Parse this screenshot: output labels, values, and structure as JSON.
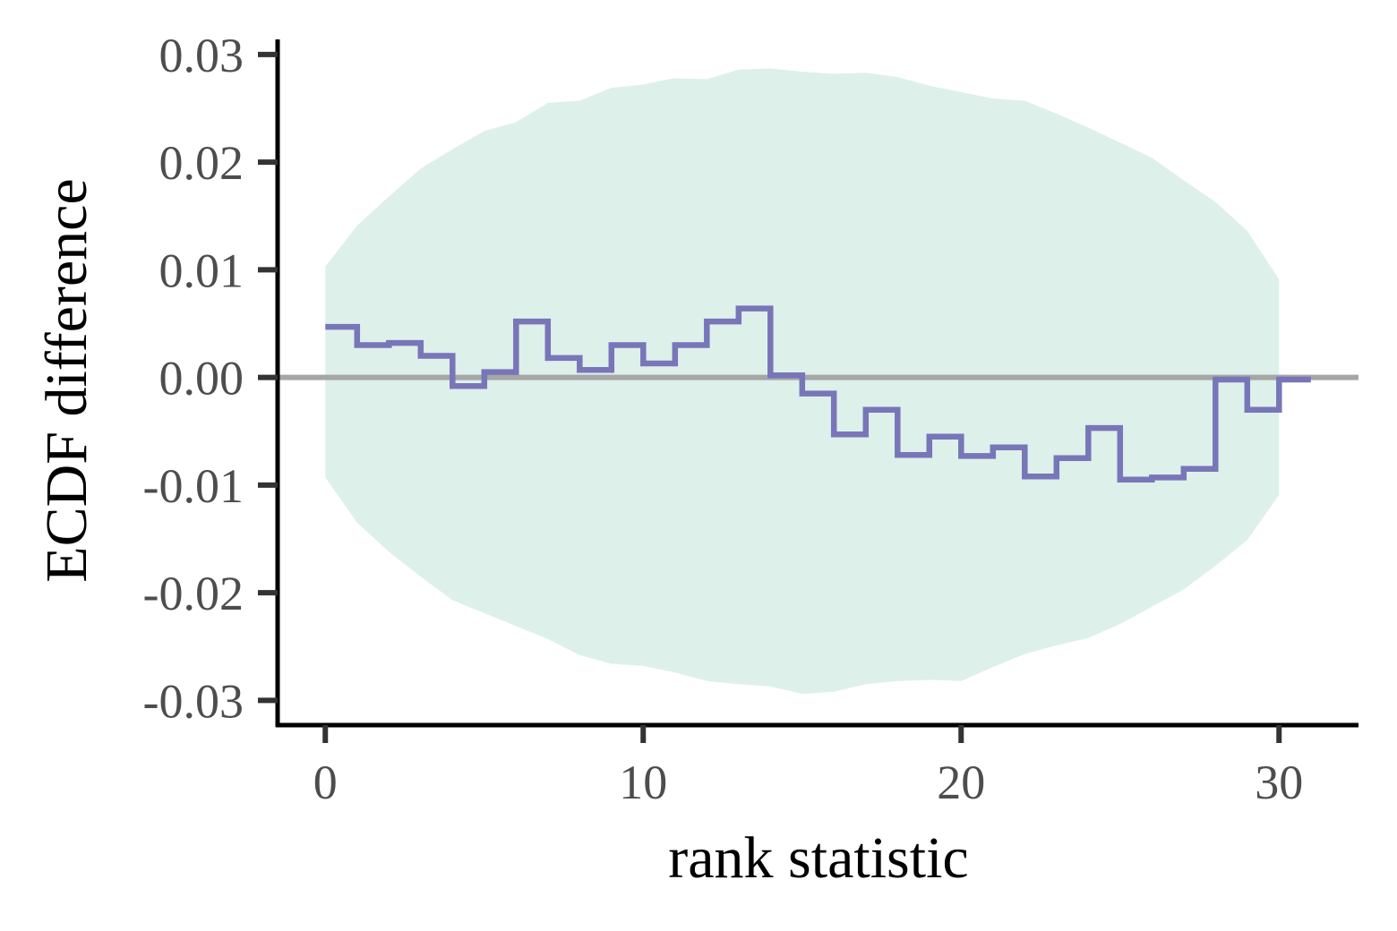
{
  "chart_data": {
    "type": "line",
    "style": "step",
    "title": "",
    "xlabel": "rank statistic",
    "ylabel": "ECDF difference",
    "xlim": [
      -1.5,
      32.5
    ],
    "ylim": [
      -0.0323,
      0.0314
    ],
    "x_ticks": [
      0,
      10,
      20,
      30
    ],
    "x_tick_labels": [
      "0",
      "10",
      "20",
      "30"
    ],
    "y_ticks": [
      -0.03,
      -0.02,
      -0.01,
      0.0,
      0.01,
      0.02,
      0.03
    ],
    "y_tick_labels": [
      "-0.03",
      "-0.02",
      "-0.01",
      "0.00",
      "0.01",
      "0.02",
      "0.03"
    ],
    "grid": false,
    "legend": "none",
    "reference_line": {
      "y": 0.0,
      "color": "#a6a6a6"
    },
    "envelope": {
      "color": "#ddf0ea",
      "x": [
        0,
        1,
        2,
        3,
        4,
        5,
        6,
        7,
        8,
        9,
        10,
        11,
        12,
        13,
        14,
        15,
        16,
        17,
        18,
        19,
        20,
        21,
        22,
        23,
        24,
        25,
        26,
        27,
        28,
        29,
        30
      ],
      "upper": [
        0.0103,
        0.0141,
        0.0168,
        0.0194,
        0.0212,
        0.0229,
        0.0237,
        0.0255,
        0.0257,
        0.0269,
        0.0272,
        0.0278,
        0.0277,
        0.0286,
        0.0287,
        0.0284,
        0.0282,
        0.0283,
        0.0279,
        0.0271,
        0.0265,
        0.0259,
        0.0257,
        0.0245,
        0.0232,
        0.0218,
        0.0204,
        0.0183,
        0.0163,
        0.0136,
        0.0091
      ],
      "lower": [
        -0.0093,
        -0.0135,
        -0.0162,
        -0.0185,
        -0.0207,
        -0.0219,
        -0.0231,
        -0.0243,
        -0.0258,
        -0.0266,
        -0.0268,
        -0.0274,
        -0.0282,
        -0.0285,
        -0.0287,
        -0.0294,
        -0.0292,
        -0.0285,
        -0.0282,
        -0.0281,
        -0.0282,
        -0.0269,
        -0.0257,
        -0.0249,
        -0.0242,
        -0.0229,
        -0.0213,
        -0.0197,
        -0.0175,
        -0.0151,
        -0.0109
      ]
    },
    "series": [
      {
        "color": "#7876b8",
        "x": [
          0,
          1,
          2,
          3,
          4,
          5,
          6,
          7,
          8,
          9,
          10,
          11,
          12,
          13,
          14,
          15,
          16,
          17,
          18,
          19,
          20,
          21,
          22,
          23,
          24,
          25,
          26,
          27,
          28,
          29,
          30,
          31
        ],
        "values": [
          0.0047,
          0.003,
          0.0032,
          0.002,
          -0.0008,
          0.0005,
          0.0052,
          0.0018,
          0.0007,
          0.003,
          0.0013,
          0.003,
          0.0052,
          0.0064,
          0.0002,
          -0.0015,
          -0.0053,
          -0.003,
          -0.0072,
          -0.0055,
          -0.0073,
          -0.0065,
          -0.0092,
          -0.0075,
          -0.0047,
          -0.0095,
          -0.0093,
          -0.0085,
          -0.0002,
          -0.003,
          -0.0002,
          -0.0002
        ]
      }
    ]
  }
}
